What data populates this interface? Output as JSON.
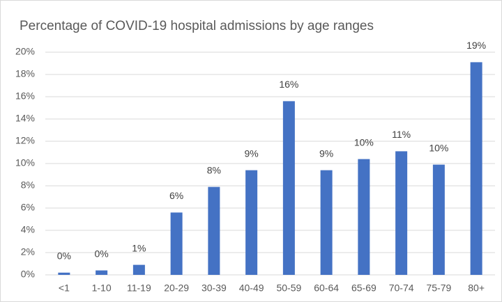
{
  "chart_data": {
    "type": "bar",
    "title": "Percentage of COVID-19 hospital admissions by age ranges",
    "categories": [
      "<1",
      "1-10",
      "11-19",
      "20-29",
      "30-39",
      "40-49",
      "50-59",
      "60-64",
      "65-69",
      "70-74",
      "75-79",
      "80+"
    ],
    "values": [
      0.2,
      0.4,
      0.9,
      5.6,
      7.9,
      9.4,
      15.6,
      9.4,
      10.4,
      11.1,
      9.9,
      19.1
    ],
    "value_labels": [
      "0%",
      "0%",
      "1%",
      "6%",
      "8%",
      "9%",
      "16%",
      "9%",
      "10%",
      "11%",
      "10%",
      "19%"
    ],
    "color": "#4472c4",
    "ylim": [
      0,
      20
    ],
    "yticks": [
      {
        "value": 0,
        "label": "0%"
      },
      {
        "value": 2,
        "label": "2%"
      },
      {
        "value": 4,
        "label": "4%"
      },
      {
        "value": 6,
        "label": "6%"
      },
      {
        "value": 8,
        "label": "8%"
      },
      {
        "value": 10,
        "label": "10%"
      },
      {
        "value": 12,
        "label": "12%"
      },
      {
        "value": 14,
        "label": "14%"
      },
      {
        "value": 16,
        "label": "16%"
      },
      {
        "value": 18,
        "label": "18%"
      },
      {
        "value": 20,
        "label": "20%"
      }
    ],
    "grid": true
  }
}
